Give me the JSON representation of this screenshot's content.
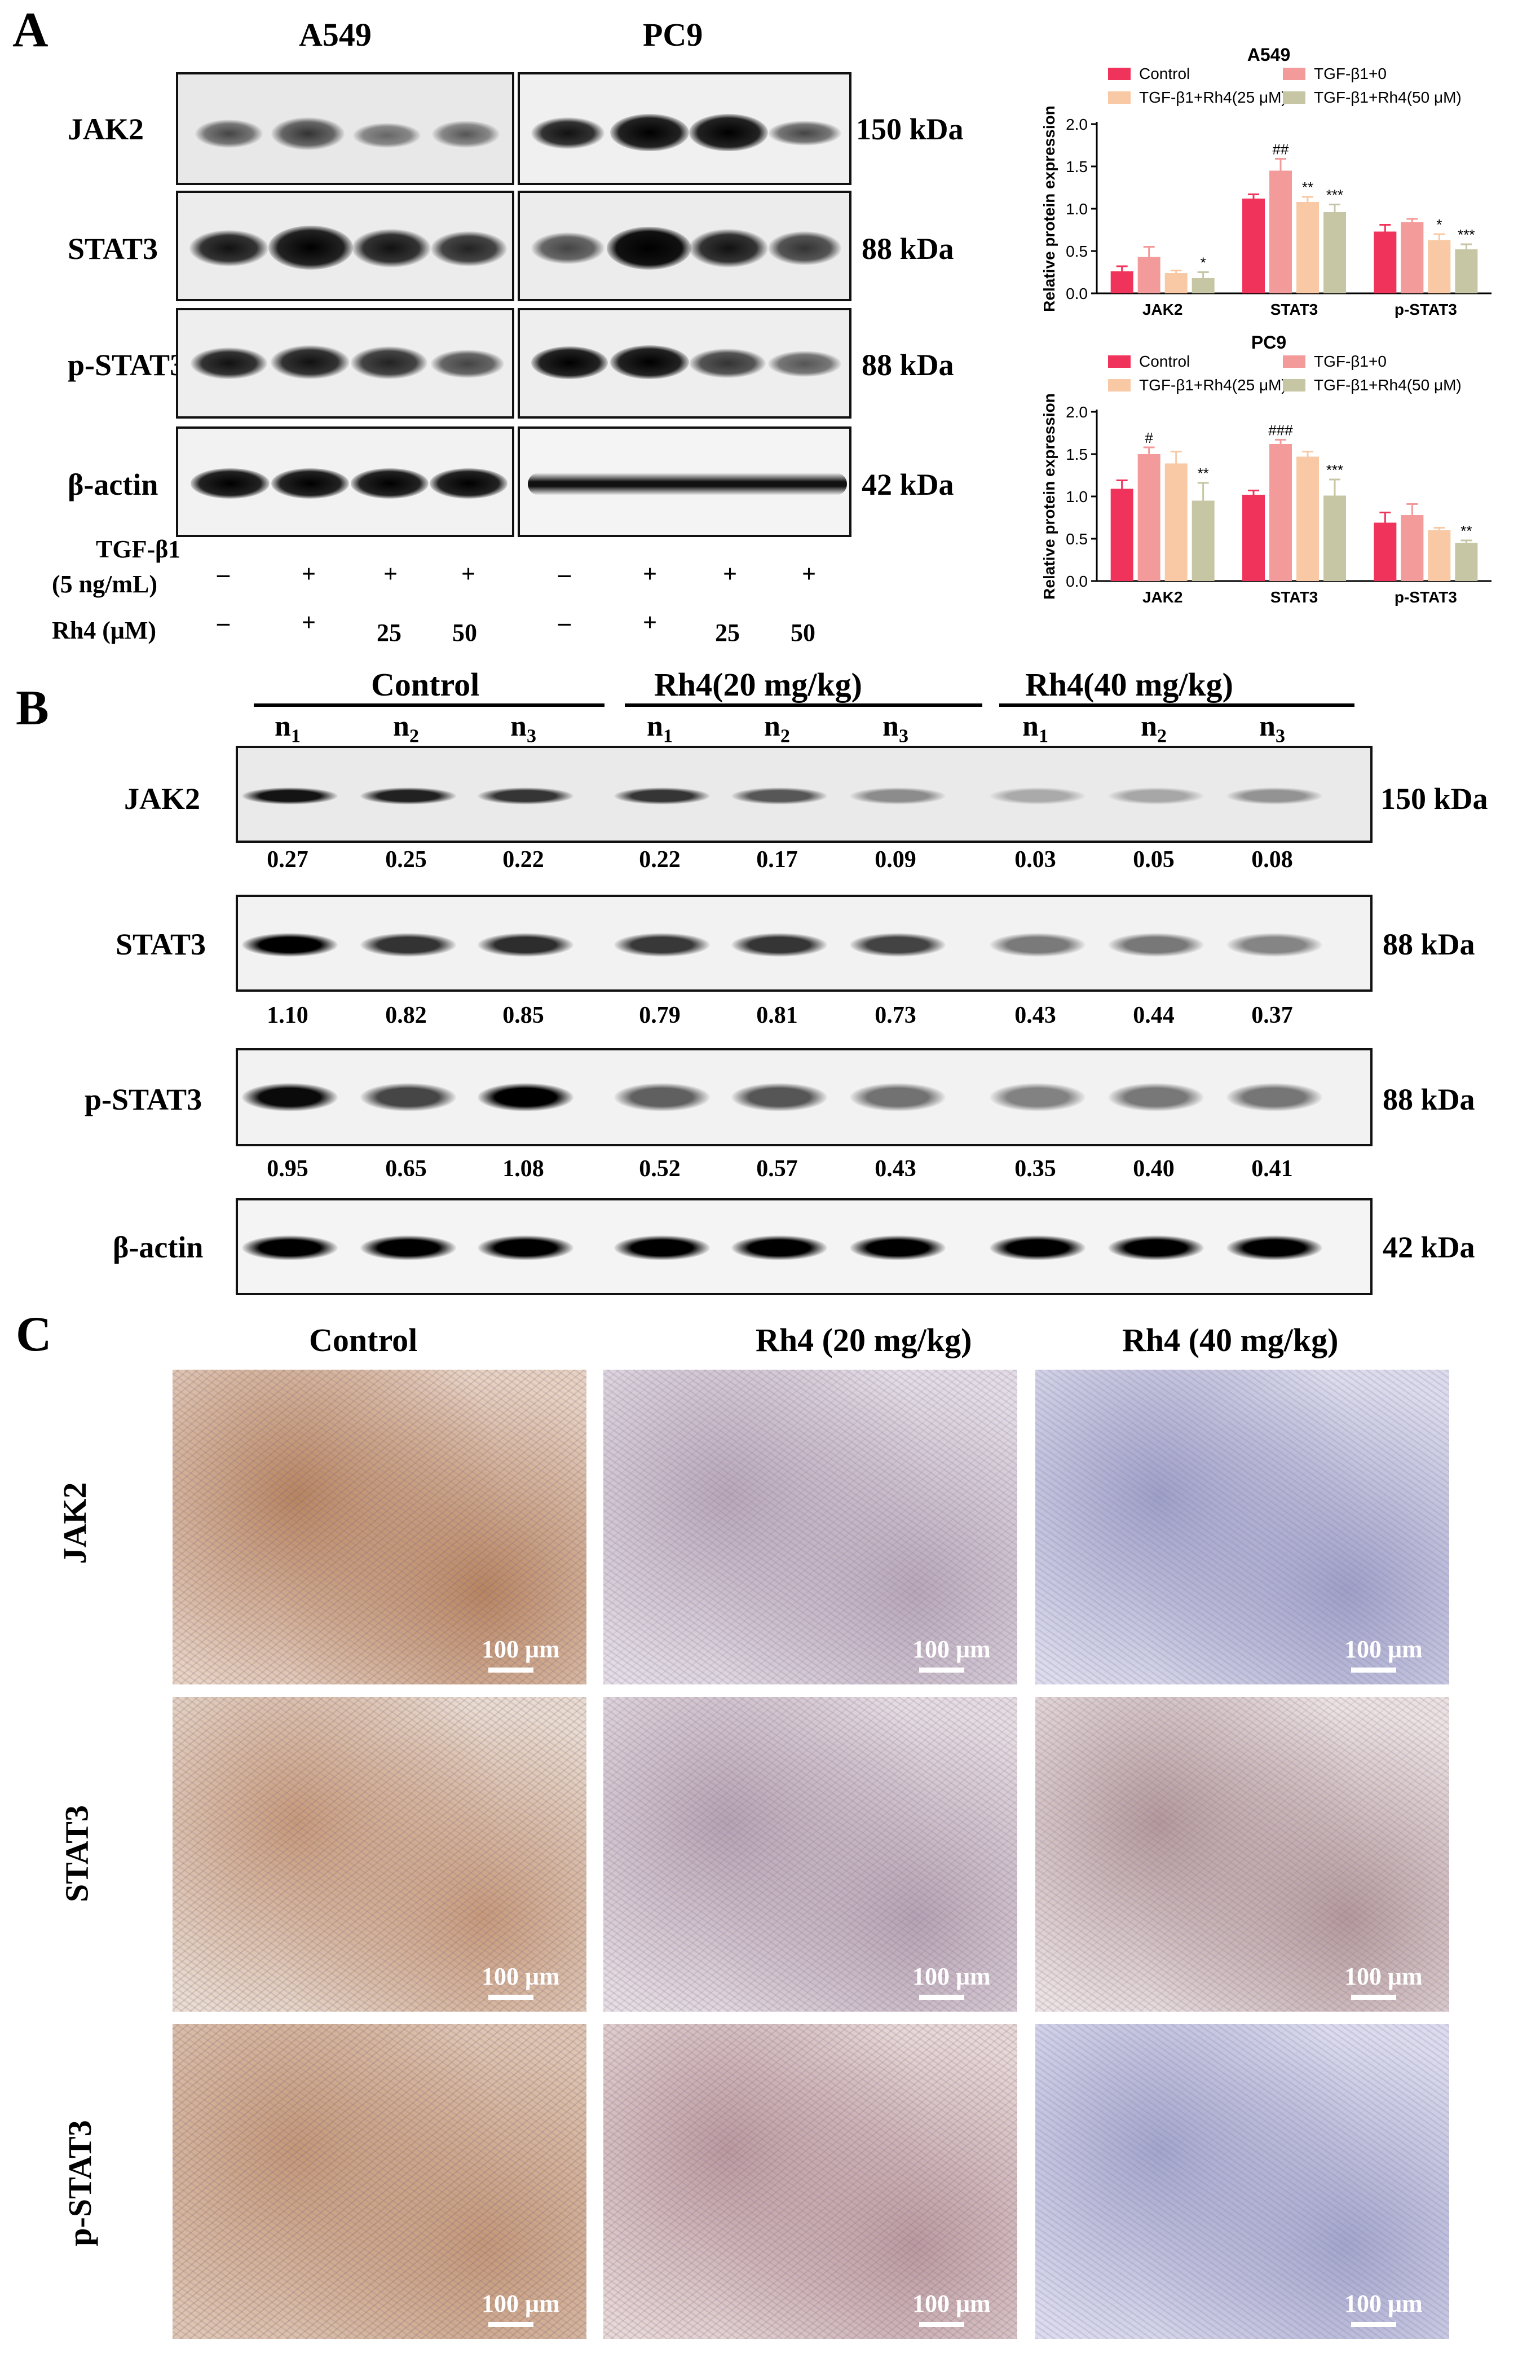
{
  "panel_a": {
    "letter": "A",
    "cell_lines": [
      "A549",
      "PC9"
    ],
    "rows": [
      {
        "protein": "JAK2",
        "kda": "150 kDa"
      },
      {
        "protein": "STAT3",
        "kda": "88 kDa"
      },
      {
        "protein": "p-STAT3",
        "kda": "88 kDa"
      },
      {
        "protein": "β-actin",
        "kda": "42 kDa"
      }
    ],
    "treatment_rows": [
      {
        "label_line1": "TGF-β1",
        "label_line2": "(5 ng/mL)",
        "a549": [
          "–",
          "+",
          "+",
          "+"
        ],
        "pc9": [
          "–",
          "+",
          "+",
          "+"
        ]
      },
      {
        "label_line1": "Rh4 (μM)",
        "label_line2": "",
        "a549": [
          "–",
          "+",
          "25",
          "50"
        ],
        "pc9": [
          "–",
          "+",
          "25",
          "50"
        ]
      }
    ]
  },
  "panel_b": {
    "letter": "B",
    "groups": [
      "Control",
      "Rh4(20 mg/kg)",
      "Rh4(40 mg/kg)"
    ],
    "lane_labels": [
      "n",
      "n",
      "n",
      "n",
      "n",
      "n",
      "n",
      "n",
      "n"
    ],
    "lane_subs": [
      "1",
      "2",
      "3",
      "1",
      "2",
      "3",
      "1",
      "2",
      "3"
    ],
    "rows": [
      {
        "protein": "JAK2",
        "kda": "150 kDa",
        "values": [
          "0.27",
          "0.25",
          "0.22",
          "0.22",
          "0.17",
          "0.09",
          "0.03",
          "0.05",
          "0.08"
        ]
      },
      {
        "protein": "STAT3",
        "kda": "88 kDa",
        "values": [
          "1.10",
          "0.82",
          "0.85",
          "0.79",
          "0.81",
          "0.73",
          "0.43",
          "0.44",
          "0.37"
        ]
      },
      {
        "protein": "p-STAT3",
        "kda": "88 kDa",
        "values": [
          "0.95",
          "0.65",
          "1.08",
          "0.52",
          "0.57",
          "0.43",
          "0.35",
          "0.40",
          "0.41"
        ]
      },
      {
        "protein": "β-actin",
        "kda": "42 kDa",
        "values": []
      }
    ]
  },
  "panel_c": {
    "letter": "C",
    "columns": [
      "Control",
      "Rh4 (20 mg/kg)",
      "Rh4 (40 mg/kg)"
    ],
    "rows": [
      "JAK2",
      "STAT3",
      "p-STAT3"
    ],
    "scale_label": "100 μm"
  },
  "colors": {
    "control": "#f0335a",
    "tgf": "#f39a9a",
    "rh4_25": "#f8c9a4",
    "rh4_50": "#c6c6a4",
    "ihc_brown": "#b98560",
    "ihc_blue": "#9fa0c8"
  },
  "chart_data": [
    {
      "type": "bar",
      "title": "A549",
      "ylabel": "Relative protein expression",
      "categories": [
        "JAK2",
        "STAT3",
        "p-STAT3"
      ],
      "ylim": [
        0,
        2.0
      ],
      "yticks": [
        "0.0",
        "0.5",
        "1.0",
        "1.5",
        "2.0"
      ],
      "series": [
        {
          "name": "Control",
          "values": [
            0.26,
            1.12,
            0.73
          ],
          "errors": [
            0.06,
            0.05,
            0.08
          ]
        },
        {
          "name": "TGF-β1+0",
          "values": [
            0.43,
            1.45,
            0.84
          ],
          "errors": [
            0.12,
            0.14,
            0.04
          ]
        },
        {
          "name": "TGF-β1+Rh4(25 μM)",
          "values": [
            0.24,
            1.08,
            0.63
          ],
          "errors": [
            0.03,
            0.06,
            0.07
          ]
        },
        {
          "name": "TGF-β1+Rh4(50 μM)",
          "values": [
            0.18,
            0.96,
            0.52
          ],
          "errors": [
            0.07,
            0.09,
            0.06
          ]
        }
      ],
      "annotations": [
        {
          "category": "JAK2",
          "series": 3,
          "text": "*"
        },
        {
          "category": "STAT3",
          "series": 1,
          "text": "##"
        },
        {
          "category": "STAT3",
          "series": 2,
          "text": "**"
        },
        {
          "category": "STAT3",
          "series": 3,
          "text": "***"
        },
        {
          "category": "p-STAT3",
          "series": 2,
          "text": "*"
        },
        {
          "category": "p-STAT3",
          "series": 3,
          "text": "***"
        }
      ],
      "legend": "top"
    },
    {
      "type": "bar",
      "title": "PC9",
      "ylabel": "Relative protein expression",
      "categories": [
        "JAK2",
        "STAT3",
        "p-STAT3"
      ],
      "ylim": [
        0,
        2.0
      ],
      "yticks": [
        "0.0",
        "0.5",
        "1.0",
        "1.5",
        "2.0"
      ],
      "series": [
        {
          "name": "Control",
          "values": [
            1.09,
            1.02,
            0.69
          ],
          "errors": [
            0.1,
            0.05,
            0.12
          ]
        },
        {
          "name": "TGF-β1+0",
          "values": [
            1.5,
            1.62,
            0.78
          ],
          "errors": [
            0.08,
            0.05,
            0.13
          ]
        },
        {
          "name": "TGF-β1+Rh4(25 μM)",
          "values": [
            1.39,
            1.47,
            0.6
          ],
          "errors": [
            0.14,
            0.06,
            0.03
          ]
        },
        {
          "name": "TGF-β1+Rh4(50 μM)",
          "values": [
            0.95,
            1.01,
            0.45
          ],
          "errors": [
            0.21,
            0.19,
            0.03
          ]
        }
      ],
      "annotations": [
        {
          "category": "JAK2",
          "series": 1,
          "text": "#"
        },
        {
          "category": "JAK2",
          "series": 3,
          "text": "**"
        },
        {
          "category": "STAT3",
          "series": 1,
          "text": "###"
        },
        {
          "category": "STAT3",
          "series": 3,
          "text": "***"
        },
        {
          "category": "p-STAT3",
          "series": 3,
          "text": "**"
        }
      ],
      "legend": "top"
    }
  ]
}
